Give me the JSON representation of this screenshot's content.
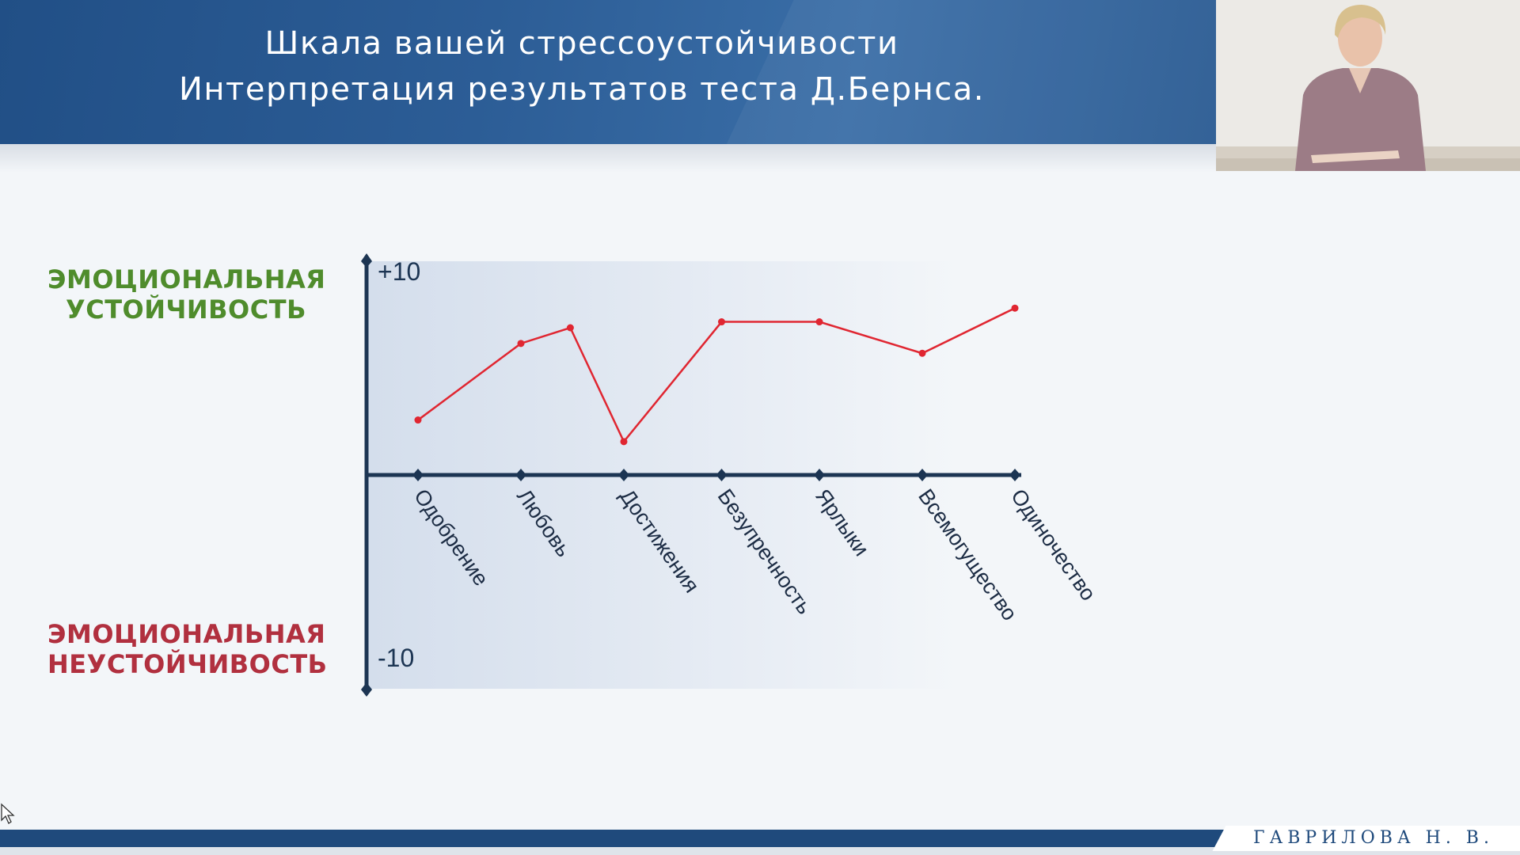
{
  "header": {
    "title_line1": "Шкала вашей стрессоустойчивости",
    "title_line2": "Интерпретация результатов теста Д.Бернса."
  },
  "side_labels": {
    "stable": [
      "ЭМОЦИОНАЛЬНАЯ",
      "УСТОЙЧИВОСТЬ"
    ],
    "unstable": [
      "ЭМОЦИОНАЛЬНАЯ",
      "НЕУСТОЙЧИВОСТЬ"
    ]
  },
  "footer": {
    "name": "ГАВРИЛОВА Н. В."
  },
  "colors": {
    "stable": "#4f8c2c",
    "unstable": "#b1303f",
    "line": "#e02631",
    "axis": "#1c3553",
    "header": "#2c5d96"
  },
  "chart_data": {
    "type": "line",
    "categories": [
      "Одобрение",
      "Любовь",
      "Достижения",
      "Безупречность",
      "Ярлыки",
      "Всемогущество",
      "Одиночество"
    ],
    "x_positions": [
      0.5,
      1.5,
      1.98,
      2.5,
      3.5,
      4.5,
      5.5,
      6.5,
      7.4
    ],
    "x_positions_note": "",
    "series": [
      {
        "name": "",
        "x": [
          0.5,
          1.5,
          1.98,
          2.5,
          3.45,
          4.4,
          5.4,
          6.3
        ],
        "values": [
          2.8,
          6.7,
          7.5,
          1.7,
          7.8,
          7.8,
          6.2,
          8.5
        ]
      }
    ],
    "ylim": [
      -10,
      10
    ],
    "ytick_labels": [
      "+10",
      "-10"
    ],
    "xlabel": "",
    "ylabel": ""
  }
}
